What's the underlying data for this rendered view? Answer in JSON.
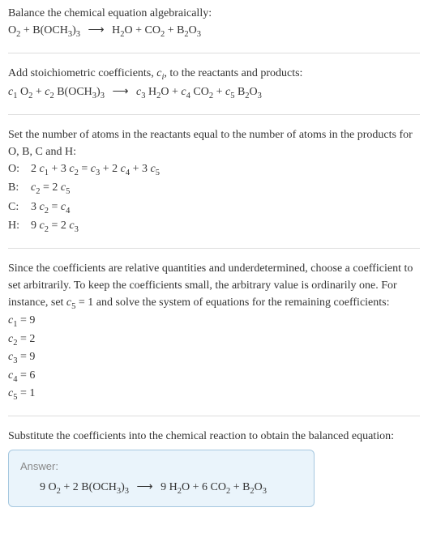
{
  "section1": {
    "text": "Balance the chemical equation algebraically:",
    "eq": "O<sub>2</sub> + B(OCH<sub>3</sub>)<sub>3</sub> <span class=\"arrow\">⟶</span> H<sub>2</sub>O + CO<sub>2</sub> + B<sub>2</sub>O<sub>3</sub>"
  },
  "section2": {
    "text": "Add stoichiometric coefficients, <span class=\"italic\">c<sub>i</sub></span>, to the reactants and products:",
    "eq": "<span class=\"italic\">c</span><sub>1</sub> O<sub>2</sub> + <span class=\"italic\">c</span><sub>2</sub> B(OCH<sub>3</sub>)<sub>3</sub> <span class=\"arrow\">⟶</span> <span class=\"italic\">c</span><sub>3</sub> H<sub>2</sub>O + <span class=\"italic\">c</span><sub>4</sub> CO<sub>2</sub> + <span class=\"italic\">c</span><sub>5</sub> B<sub>2</sub>O<sub>3</sub>"
  },
  "section3": {
    "text": "Set the number of atoms in the reactants equal to the number of atoms in the products for O, B, C and H:",
    "rows": [
      {
        "label": "O:",
        "eq": "2 <span class=\"italic\">c</span><sub>1</sub> + 3 <span class=\"italic\">c</span><sub>2</sub> = <span class=\"italic\">c</span><sub>3</sub> + 2 <span class=\"italic\">c</span><sub>4</sub> + 3 <span class=\"italic\">c</span><sub>5</sub>"
      },
      {
        "label": "B:",
        "eq": "<span class=\"italic\">c</span><sub>2</sub> = 2 <span class=\"italic\">c</span><sub>5</sub>"
      },
      {
        "label": "C:",
        "eq": "3 <span class=\"italic\">c</span><sub>2</sub> = <span class=\"italic\">c</span><sub>4</sub>"
      },
      {
        "label": "H:",
        "eq": "9 <span class=\"italic\">c</span><sub>2</sub> = 2 <span class=\"italic\">c</span><sub>3</sub>"
      }
    ]
  },
  "section4": {
    "text": "Since the coefficients are relative quantities and underdetermined, choose a coefficient to set arbitrarily. To keep the coefficients small, the arbitrary value is ordinarily one. For instance, set <span class=\"italic\">c</span><sub>5</sub> = 1 and solve the system of equations for the remaining coefficients:",
    "coeffs": [
      "<span class=\"italic\">c</span><sub>1</sub> = 9",
      "<span class=\"italic\">c</span><sub>2</sub> = 2",
      "<span class=\"italic\">c</span><sub>3</sub> = 9",
      "<span class=\"italic\">c</span><sub>4</sub> = 6",
      "<span class=\"italic\">c</span><sub>5</sub> = 1"
    ]
  },
  "section5": {
    "text": "Substitute the coefficients into the chemical reaction to obtain the balanced equation:"
  },
  "answer": {
    "label": "Answer:",
    "eq": "9 O<sub>2</sub> + 2 B(OCH<sub>3</sub>)<sub>3</sub> <span class=\"arrow\">⟶</span> 9 H<sub>2</sub>O + 6 CO<sub>2</sub> + B<sub>2</sub>O<sub>3</sub>"
  }
}
